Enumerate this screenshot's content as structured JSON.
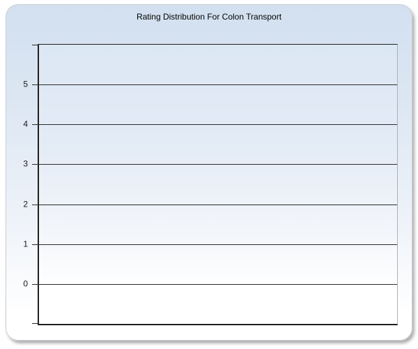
{
  "chart": {
    "title": "Rating Distribution For Colon Transport"
  },
  "chart_data": {
    "type": "bar",
    "title": "Rating Distribution For Colon Transport",
    "categories": [],
    "series": [],
    "values": [],
    "xlabel": "",
    "ylabel": "",
    "y_ticks": [
      5,
      4,
      3,
      2,
      1,
      0
    ],
    "ylim": [
      -1,
      6
    ],
    "grid": true,
    "legend": false,
    "note_visible_data": "empty plot area, no bars or series rendered"
  },
  "colors": {
    "panel_gradient_top": "#d2e0f0",
    "panel_gradient_bottom": "#ffffff",
    "plot_gradient_top": "#dce7f4",
    "plot_gradient_bottom": "#ffffff",
    "axis_line": "#1f1f1f",
    "gridline": "#2b2b2b",
    "plot_right_border": "#a8b2bc",
    "title_text": "#000000",
    "tick_label_text": "#1a1a1a"
  }
}
